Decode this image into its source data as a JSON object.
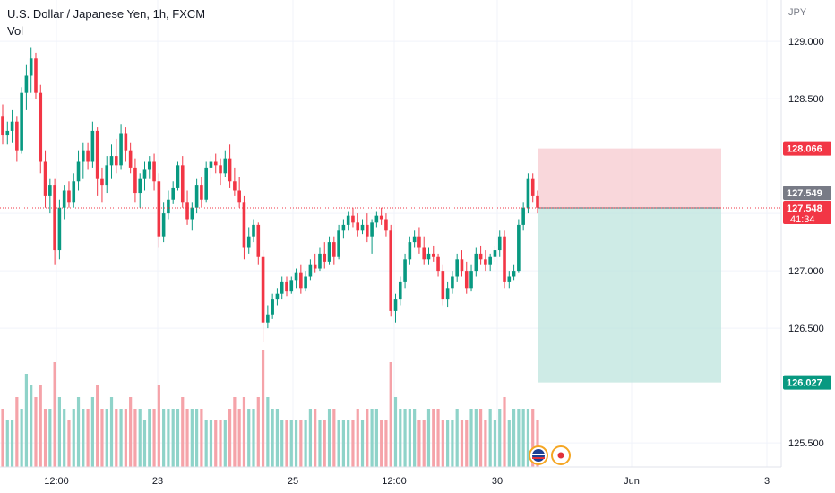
{
  "header": {
    "title": "U.S. Dollar / Japanese Yen, 1h, FXCM",
    "indicator": "Vol",
    "currency": "JPY"
  },
  "chart_data": {
    "type": "candlestick",
    "title": "U.S. Dollar / Japanese Yen, 1h, FXCM",
    "ylim": [
      125.29,
      129.36
    ],
    "y_ticks": [
      {
        "value": 129.0,
        "label": "129.000"
      },
      {
        "value": 128.5,
        "label": "128.500"
      },
      {
        "value": 127.5,
        "label": "127.500"
      },
      {
        "value": 127.0,
        "label": "127.000"
      },
      {
        "value": 126.5,
        "label": "126.500"
      },
      {
        "value": 125.5,
        "label": "125.500"
      }
    ],
    "x_ticks": [
      "12:00",
      "23",
      "25",
      "12:00",
      "30",
      "Jun",
      "3"
    ],
    "price_labels": {
      "target": {
        "value": 128.066,
        "label": "128.066",
        "color": "#f23645"
      },
      "last": {
        "value": 127.549,
        "label": "127.549",
        "color": "#787b86"
      },
      "current": {
        "value": 127.548,
        "label": "127.548",
        "countdown": "41:34",
        "color": "#f23645"
      },
      "stop": {
        "value": 126.027,
        "label": "126.027",
        "color": "#089981"
      }
    },
    "position": {
      "type": "short",
      "entry": 127.548,
      "stop_loss": 128.066,
      "take_profit": 126.027
    },
    "ohlc": [
      [
        128.35,
        128.45,
        128.1,
        128.18
      ],
      [
        128.18,
        128.3,
        128.1,
        128.22
      ],
      [
        128.22,
        128.4,
        128.12,
        128.3
      ],
      [
        128.3,
        128.35,
        127.95,
        128.05
      ],
      [
        128.05,
        128.6,
        128.02,
        128.55
      ],
      [
        128.55,
        128.8,
        128.4,
        128.7
      ],
      [
        128.7,
        128.95,
        128.55,
        128.85
      ],
      [
        128.85,
        128.9,
        128.5,
        128.55
      ],
      [
        128.55,
        128.62,
        127.85,
        127.95
      ],
      [
        127.95,
        128.05,
        127.55,
        127.65
      ],
      [
        127.65,
        127.8,
        127.5,
        127.75
      ],
      [
        127.75,
        127.8,
        127.05,
        127.18
      ],
      [
        127.18,
        127.62,
        127.1,
        127.55
      ],
      [
        127.55,
        127.75,
        127.45,
        127.7
      ],
      [
        127.7,
        127.78,
        127.55,
        127.6
      ],
      [
        127.6,
        127.85,
        127.55,
        127.78
      ],
      [
        127.78,
        128.05,
        127.7,
        127.95
      ],
      [
        127.95,
        128.12,
        127.8,
        128.05
      ],
      [
        128.05,
        128.12,
        127.88,
        127.95
      ],
      [
        127.95,
        128.3,
        127.9,
        128.22
      ],
      [
        128.22,
        128.25,
        127.65,
        127.8
      ],
      [
        127.8,
        127.9,
        127.6,
        127.75
      ],
      [
        127.75,
        128.0,
        127.68,
        127.92
      ],
      [
        127.92,
        128.1,
        127.8,
        128.0
      ],
      [
        128.0,
        128.15,
        127.85,
        127.92
      ],
      [
        127.92,
        128.28,
        127.88,
        128.2
      ],
      [
        128.2,
        128.25,
        127.95,
        128.05
      ],
      [
        128.05,
        128.12,
        127.85,
        127.9
      ],
      [
        127.9,
        127.98,
        127.6,
        127.68
      ],
      [
        127.68,
        127.85,
        127.55,
        127.8
      ],
      [
        127.8,
        127.95,
        127.7,
        127.88
      ],
      [
        127.88,
        128.0,
        127.8,
        127.95
      ],
      [
        127.95,
        128.02,
        127.7,
        127.78
      ],
      [
        127.78,
        127.85,
        127.2,
        127.3
      ],
      [
        127.3,
        127.6,
        127.25,
        127.5
      ],
      [
        127.5,
        127.7,
        127.45,
        127.62
      ],
      [
        127.62,
        127.78,
        127.58,
        127.72
      ],
      [
        127.72,
        127.95,
        127.7,
        127.92
      ],
      [
        127.92,
        128.0,
        127.55,
        127.6
      ],
      [
        127.6,
        127.7,
        127.4,
        127.45
      ],
      [
        127.45,
        127.6,
        127.35,
        127.55
      ],
      [
        127.55,
        127.8,
        127.5,
        127.75
      ],
      [
        127.75,
        127.82,
        127.55,
        127.62
      ],
      [
        127.62,
        127.95,
        127.6,
        127.9
      ],
      [
        127.9,
        128.0,
        127.8,
        127.95
      ],
      [
        127.95,
        128.02,
        127.85,
        127.92
      ],
      [
        127.92,
        127.98,
        127.75,
        127.85
      ],
      [
        127.85,
        128.05,
        127.82,
        127.98
      ],
      [
        127.98,
        128.1,
        127.72,
        127.78
      ],
      [
        127.78,
        127.9,
        127.65,
        127.7
      ],
      [
        127.7,
        127.82,
        127.55,
        127.6
      ],
      [
        127.6,
        127.65,
        127.1,
        127.2
      ],
      [
        127.2,
        127.38,
        127.15,
        127.3
      ],
      [
        127.3,
        127.45,
        127.25,
        127.4
      ],
      [
        127.4,
        127.42,
        127.05,
        127.12
      ],
      [
        127.12,
        127.18,
        126.38,
        126.55
      ],
      [
        126.55,
        126.7,
        126.5,
        126.62
      ],
      [
        126.62,
        126.8,
        126.58,
        126.75
      ],
      [
        126.75,
        126.85,
        126.7,
        126.8
      ],
      [
        126.8,
        126.95,
        126.75,
        126.9
      ],
      [
        126.9,
        126.95,
        126.78,
        126.82
      ],
      [
        126.82,
        126.95,
        126.8,
        126.92
      ],
      [
        126.92,
        127.02,
        126.85,
        126.98
      ],
      [
        126.98,
        127.05,
        126.8,
        126.85
      ],
      [
        126.85,
        127.0,
        126.82,
        126.95
      ],
      [
        126.95,
        127.1,
        126.92,
        127.05
      ],
      [
        127.05,
        127.15,
        126.98,
        127.02
      ],
      [
        127.02,
        127.2,
        127.0,
        127.15
      ],
      [
        127.15,
        127.25,
        127.02,
        127.08
      ],
      [
        127.08,
        127.3,
        127.05,
        127.25
      ],
      [
        127.25,
        127.3,
        127.05,
        127.12
      ],
      [
        127.12,
        127.4,
        127.1,
        127.35
      ],
      [
        127.35,
        127.45,
        127.28,
        127.4
      ],
      [
        127.4,
        127.52,
        127.35,
        127.48
      ],
      [
        127.48,
        127.55,
        127.38,
        127.42
      ],
      [
        127.42,
        127.5,
        127.3,
        127.35
      ],
      [
        127.35,
        127.45,
        127.32,
        127.4
      ],
      [
        127.4,
        127.5,
        127.25,
        127.3
      ],
      [
        127.3,
        127.45,
        127.15,
        127.42
      ],
      [
        127.42,
        127.52,
        127.38,
        127.48
      ],
      [
        127.48,
        127.55,
        127.4,
        127.45
      ],
      [
        127.45,
        127.5,
        127.3,
        127.35
      ],
      [
        127.35,
        127.4,
        126.6,
        126.65
      ],
      [
        126.65,
        126.8,
        126.55,
        126.75
      ],
      [
        126.75,
        126.95,
        126.7,
        126.9
      ],
      [
        126.9,
        127.15,
        126.85,
        127.1
      ],
      [
        127.1,
        127.3,
        127.05,
        127.25
      ],
      [
        127.25,
        127.35,
        127.2,
        127.3
      ],
      [
        127.3,
        127.38,
        127.15,
        127.2
      ],
      [
        127.2,
        127.3,
        127.05,
        127.1
      ],
      [
        127.1,
        127.2,
        127.05,
        127.15
      ],
      [
        127.15,
        127.22,
        127.08,
        127.12
      ],
      [
        127.12,
        127.15,
        126.95,
        127.0
      ],
      [
        127.0,
        127.05,
        126.7,
        126.75
      ],
      [
        126.75,
        126.9,
        126.68,
        126.85
      ],
      [
        126.85,
        127.0,
        126.8,
        126.95
      ],
      [
        126.95,
        127.15,
        126.9,
        127.1
      ],
      [
        127.1,
        127.18,
        126.95,
        127.0
      ],
      [
        127.0,
        127.08,
        126.8,
        126.85
      ],
      [
        126.85,
        127.05,
        126.82,
        127.0
      ],
      [
        127.0,
        127.2,
        126.95,
        127.15
      ],
      [
        127.15,
        127.22,
        127.05,
        127.1
      ],
      [
        127.1,
        127.18,
        127.0,
        127.05
      ],
      [
        127.05,
        127.15,
        127.0,
        127.12
      ],
      [
        127.12,
        127.22,
        127.08,
        127.18
      ],
      [
        127.18,
        127.35,
        127.12,
        127.3
      ],
      [
        127.3,
        127.35,
        126.85,
        126.9
      ],
      [
        126.9,
        127.0,
        126.85,
        126.95
      ],
      [
        126.95,
        127.05,
        126.92,
        127.0
      ],
      [
        127.0,
        127.45,
        126.98,
        127.4
      ],
      [
        127.4,
        127.6,
        127.35,
        127.55
      ],
      [
        127.55,
        127.85,
        127.5,
        127.8
      ],
      [
        127.8,
        127.85,
        127.6,
        127.65
      ],
      [
        127.65,
        127.7,
        127.5,
        127.55
      ]
    ],
    "volume": [
      5,
      4,
      4,
      6,
      5,
      8,
      7,
      6,
      7,
      5,
      5,
      9,
      6,
      5,
      4,
      5,
      6,
      5,
      5,
      6,
      7,
      5,
      5,
      6,
      5,
      5,
      5,
      6,
      5,
      5,
      4,
      5,
      5,
      7,
      5,
      5,
      5,
      5,
      6,
      5,
      5,
      5,
      5,
      4,
      4,
      4,
      4,
      4,
      5,
      6,
      5,
      6,
      5,
      5,
      6,
      10,
      6,
      5,
      5,
      4,
      4,
      4,
      4,
      4,
      4,
      5,
      5,
      4,
      4,
      5,
      5,
      4,
      4,
      4,
      4,
      5,
      4,
      5,
      5,
      5,
      4,
      4,
      9,
      6,
      5,
      5,
      5,
      5,
      4,
      4,
      5,
      5,
      5,
      4,
      4,
      4,
      5,
      4,
      4,
      5,
      5,
      5,
      4,
      5,
      4,
      5,
      6,
      4,
      5,
      5,
      5,
      5,
      5,
      4
    ]
  }
}
